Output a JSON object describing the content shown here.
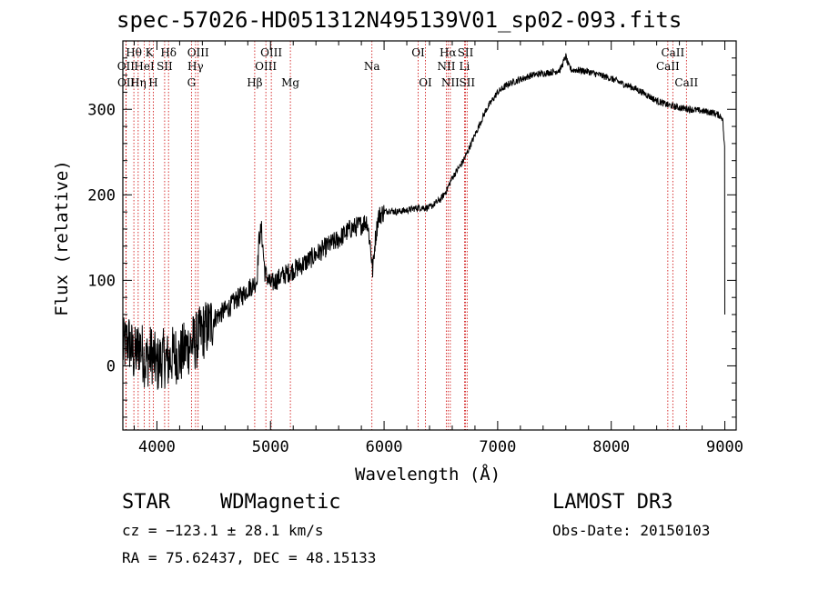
{
  "chart_data": {
    "type": "line",
    "title": "spec-57026-HD051312N495139V01_sp02-093.fits",
    "xlabel": "Wavelength (Å)",
    "ylabel": "Flux (relative)",
    "xlim": [
      3700,
      9100
    ],
    "ylim": [
      -75,
      380
    ],
    "xticks": [
      4000,
      5000,
      6000,
      7000,
      8000,
      9000
    ],
    "yticks": [
      0,
      100,
      200,
      300
    ],
    "grid": false,
    "series": [
      {
        "name": "spectrum",
        "color": "#000000",
        "x": [
          3700,
          3750,
          3800,
          3850,
          3900,
          3950,
          4000,
          4050,
          4100,
          4150,
          4200,
          4250,
          4300,
          4350,
          4400,
          4450,
          4500,
          4550,
          4600,
          4650,
          4700,
          4750,
          4800,
          4850,
          4880,
          4900,
          4920,
          4950,
          5000,
          5100,
          5200,
          5300,
          5400,
          5500,
          5600,
          5700,
          5800,
          5850,
          5880,
          5900,
          5920,
          5950,
          6000,
          6050,
          6100,
          6200,
          6300,
          6400,
          6500,
          6550,
          6600,
          6700,
          6800,
          6900,
          7000,
          7100,
          7200,
          7300,
          7400,
          7500,
          7550,
          7600,
          7620,
          7650,
          7700,
          7800,
          7900,
          8000,
          8100,
          8200,
          8300,
          8400,
          8500,
          8600,
          8700,
          8800,
          8900,
          8950,
          8980,
          9000
        ],
        "y": [
          20,
          30,
          10,
          25,
          5,
          15,
          0,
          10,
          5,
          15,
          10,
          20,
          25,
          30,
          40,
          45,
          55,
          60,
          65,
          70,
          78,
          82,
          90,
          95,
          100,
          150,
          160,
          110,
          95,
          105,
          112,
          120,
          130,
          140,
          148,
          160,
          165,
          170,
          140,
          110,
          145,
          175,
          180,
          182,
          180,
          182,
          185,
          185,
          195,
          205,
          220,
          240,
          270,
          300,
          320,
          330,
          335,
          340,
          342,
          344,
          346,
          362,
          352,
          346,
          346,
          344,
          340,
          336,
          330,
          325,
          318,
          310,
          305,
          302,
          300,
          298,
          296,
          293,
          290,
          250
        ]
      }
    ],
    "lines": [
      {
        "name": "H-theta",
        "wavelength": 3797,
        "label": "Hθ",
        "row": 1
      },
      {
        "name": "K",
        "wavelength": 3934,
        "label": "K",
        "row": 1
      },
      {
        "name": "H-delta",
        "wavelength": 4102,
        "label": "Hδ",
        "row": 1
      },
      {
        "name": "OII-3727",
        "wavelength": 3727,
        "label": "OII",
        "row": 2
      },
      {
        "name": "HeI",
        "wavelength": 3889,
        "label": "HeI",
        "row": 2
      },
      {
        "name": "SII-4068",
        "wavelength": 4068,
        "label": "SII",
        "row": 2
      },
      {
        "name": "OII-3729",
        "wavelength": 3729,
        "label": "OII",
        "row": 3
      },
      {
        "name": "H-eta",
        "wavelength": 3835,
        "label": "Hη",
        "row": 3
      },
      {
        "name": "H",
        "wavelength": 3968,
        "label": "H",
        "row": 3
      },
      {
        "name": "OIII-4363",
        "wavelength": 4363,
        "label": "OIII",
        "row": 1
      },
      {
        "name": "H-gamma",
        "wavelength": 4340,
        "label": "Hγ",
        "row": 2
      },
      {
        "name": "G",
        "wavelength": 4304,
        "label": "G",
        "row": 3
      },
      {
        "name": "OIII-5007",
        "wavelength": 5007,
        "label": "OIII",
        "row": 1
      },
      {
        "name": "OIII-4959",
        "wavelength": 4959,
        "label": "OIII",
        "row": 2
      },
      {
        "name": "H-beta",
        "wavelength": 4861,
        "label": "Hβ",
        "row": 3
      },
      {
        "name": "Mg",
        "wavelength": 5175,
        "label": "Mg",
        "row": 3
      },
      {
        "name": "Na",
        "wavelength": 5893,
        "label": "Na",
        "row": 2
      },
      {
        "name": "OI-6300",
        "wavelength": 6300,
        "label": "OI",
        "row": 1
      },
      {
        "name": "OI-6364",
        "wavelength": 6364,
        "label": "OI",
        "row": 3
      },
      {
        "name": "H-alpha",
        "wavelength": 6563,
        "label": "Hα",
        "row": 1
      },
      {
        "name": "SII-6717",
        "wavelength": 6717,
        "label": "SII",
        "row": 1
      },
      {
        "name": "NII-6548",
        "wavelength": 6548,
        "label": "NII",
        "row": 2
      },
      {
        "name": "Li",
        "wavelength": 6708,
        "label": "Li",
        "row": 2
      },
      {
        "name": "NII-6583",
        "wavelength": 6583,
        "label": "NII",
        "row": 3
      },
      {
        "name": "SII-6731",
        "wavelength": 6731,
        "label": "SII",
        "row": 3
      },
      {
        "name": "CaII-8542",
        "wavelength": 8542,
        "label": "CaII",
        "row": 1
      },
      {
        "name": "CaII-8498",
        "wavelength": 8498,
        "label": "CaII",
        "row": 2
      },
      {
        "name": "CaII-8662",
        "wavelength": 8662,
        "label": "CaII",
        "row": 3
      }
    ],
    "line_color": "#cc0000"
  },
  "info": {
    "class": "STAR",
    "subclass": "WDMagnetic",
    "survey": "LAMOST DR3",
    "cz": "cz = −123.1 ± 28.1 km/s",
    "obs_date": "Obs-Date: 20150103",
    "coords": "RA =  75.62437, DEC =  48.15133"
  }
}
